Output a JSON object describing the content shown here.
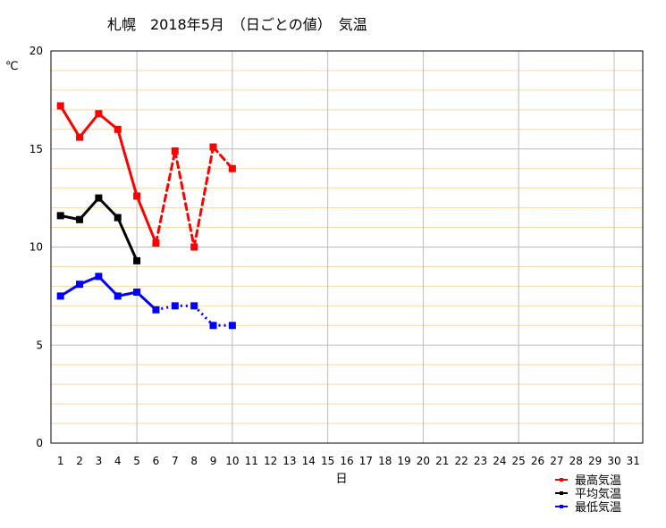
{
  "chart_data": {
    "type": "line",
    "title": "札幌　2018年5月　（日ごとの値）　気温",
    "xlabel": "日",
    "ylabel": "℃",
    "xlim": [
      0.5,
      31.5
    ],
    "ylim": [
      0,
      20
    ],
    "x_ticks": [
      "1",
      "2",
      "3",
      "4",
      "5",
      "6",
      "7",
      "8",
      "9",
      "10",
      "11",
      "12",
      "13",
      "14",
      "15",
      "16",
      "17",
      "18",
      "19",
      "20",
      "21",
      "22",
      "23",
      "24",
      "25",
      "26",
      "27",
      "28",
      "29",
      "30",
      "31"
    ],
    "y_ticks": [
      "0",
      "5",
      "10",
      "15",
      "20"
    ],
    "legend_position": "bottom-right",
    "grid": true,
    "series": [
      {
        "name": "最高気温",
        "color": "#ff0000",
        "points": [
          {
            "x": 1,
            "y": 17.2
          },
          {
            "x": 2,
            "y": 15.6
          },
          {
            "x": 3,
            "y": 16.8
          },
          {
            "x": 4,
            "y": 16.0
          },
          {
            "x": 5,
            "y": 12.6
          },
          {
            "x": 6,
            "y": 10.2
          },
          {
            "x": 7,
            "y": 14.9
          },
          {
            "x": 8,
            "y": 10.0
          },
          {
            "x": 9,
            "y": 15.1
          },
          {
            "x": 10,
            "y": 14.0
          }
        ],
        "solid_through": 6
      },
      {
        "name": "平均気温",
        "color": "#000000",
        "points": [
          {
            "x": 1,
            "y": 11.6
          },
          {
            "x": 2,
            "y": 11.4
          },
          {
            "x": 3,
            "y": 12.5
          },
          {
            "x": 4,
            "y": 11.5
          },
          {
            "x": 5,
            "y": 9.3
          }
        ],
        "solid_through": 5
      },
      {
        "name": "最低気温",
        "color": "#0000ff",
        "points": [
          {
            "x": 1,
            "y": 7.5
          },
          {
            "x": 2,
            "y": 8.1
          },
          {
            "x": 3,
            "y": 8.5
          },
          {
            "x": 4,
            "y": 7.5
          },
          {
            "x": 5,
            "y": 7.7
          },
          {
            "x": 6,
            "y": 6.8
          },
          {
            "x": 7,
            "y": 7.0
          },
          {
            "x": 8,
            "y": 7.0
          },
          {
            "x": 9,
            "y": 6.0
          },
          {
            "x": 10,
            "y": 6.0
          }
        ],
        "solid_through": 6
      }
    ]
  }
}
